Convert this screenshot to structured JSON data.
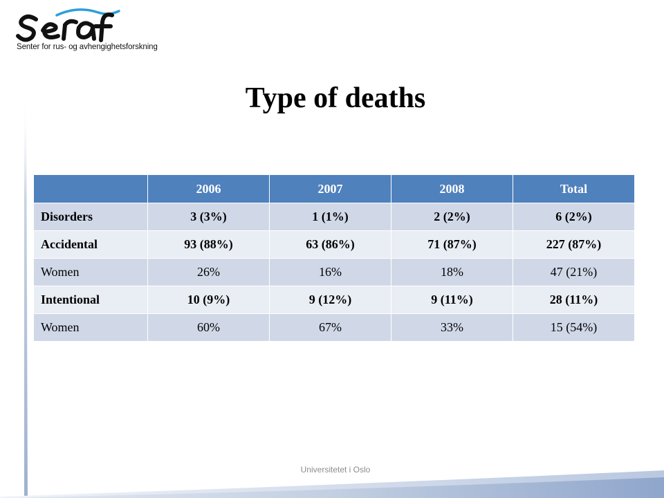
{
  "logo": {
    "name": "seraf",
    "tagline": "Senter for rus- og avhengighetsforskning"
  },
  "title": "Type of deaths",
  "table": {
    "headers": [
      "",
      "2006",
      "2007",
      "2008",
      "Total"
    ],
    "rows": [
      {
        "label": "Disorders",
        "cells": [
          "3 (3%)",
          "1 (1%)",
          "2 (2%)",
          "6 (2%)"
        ]
      },
      {
        "label": "Accidental",
        "cells": [
          "93 (88%)",
          "63 (86%)",
          "71 (87%)",
          "227 (87%)"
        ]
      },
      {
        "label": "Women",
        "cells": [
          "26%",
          "16%",
          "18%",
          "47 (21%)"
        ]
      },
      {
        "label": "Intentional",
        "cells": [
          "10 (9%)",
          "9 (12%)",
          "9 (11%)",
          "28 (11%)"
        ]
      },
      {
        "label": "Women",
        "cells": [
          "60%",
          "67%",
          "33%",
          "15 (54%)"
        ]
      }
    ]
  },
  "footer": "Universitetet i Oslo",
  "colors": {
    "header_bg": "#4f81bd",
    "band_dark": "#d0d8e8",
    "band_light": "#e9edf4",
    "logo_blue": "#2b9fd8"
  }
}
